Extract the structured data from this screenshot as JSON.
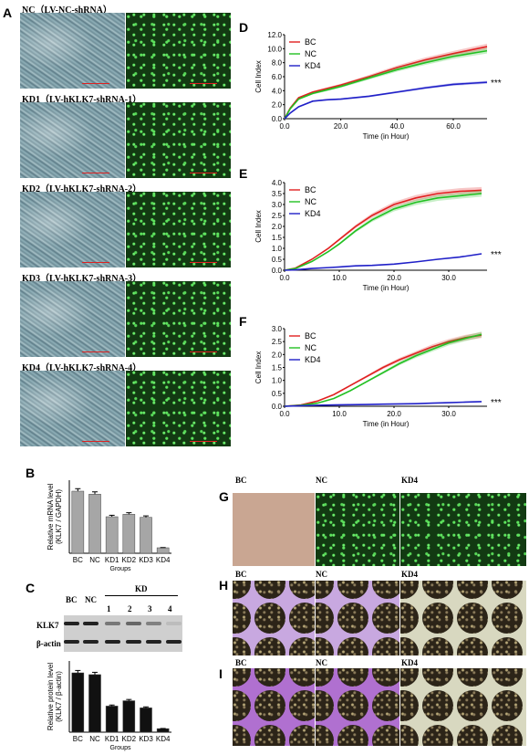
{
  "panel_labels": {
    "A": "A",
    "B": "B",
    "C": "C",
    "D": "D",
    "E": "E",
    "F": "F",
    "G": "G",
    "H": "H",
    "I": "I"
  },
  "microscopy": [
    {
      "title": "NC（LV-NC-shRNA）"
    },
    {
      "title": "KD1（LV-hKLK7-shRNA-1）"
    },
    {
      "title": "KD2（LV-hKLK7-shRNA-2）"
    },
    {
      "title": "KD3（LV-hKLK7-shRNA-3）"
    },
    {
      "title": "KD4（LV-hKLK7-shRNA-4）"
    }
  ],
  "western": {
    "col_labels": [
      "BC",
      "NC",
      "1",
      "2",
      "3",
      "4"
    ],
    "kd_label": "KD",
    "row_labels": [
      "KLK7",
      "β-actin"
    ]
  },
  "assays": {
    "G": {
      "labels": [
        "BC",
        "NC",
        "KD4"
      ]
    },
    "H": {
      "labels": [
        "BC",
        "NC",
        "KD4"
      ]
    },
    "I": {
      "labels": [
        "BC",
        "NC",
        "KD4"
      ]
    }
  },
  "colors": {
    "BC": "#e02020",
    "NC": "#22c022",
    "KD4": "#2020c8",
    "bar_B": "#a6a6a6",
    "bar_C": "#111111"
  },
  "chart_data": [
    {
      "id": "B",
      "type": "bar",
      "categories": [
        "BC",
        "NC",
        "KD1",
        "KD2",
        "KD3",
        "KD4"
      ],
      "values": [
        1.02,
        0.97,
        0.6,
        0.64,
        0.59,
        0.09
      ],
      "xlabel": "Groups",
      "ylabel": "Relative mRNA level\n(KLK7 / GAPDH)",
      "ylim": [
        0,
        1.2
      ],
      "ticks": []
    },
    {
      "id": "C",
      "type": "bar",
      "categories": [
        "BC",
        "NC",
        "KD1",
        "KD2",
        "KD3",
        "KD4"
      ],
      "values": [
        1.0,
        0.97,
        0.44,
        0.53,
        0.41,
        0.06
      ],
      "xlabel": "Groups",
      "ylabel": "Relative protein level\n(KLK7 / β-actin)",
      "ylim": [
        0,
        1.2
      ],
      "ticks": []
    },
    {
      "id": "D",
      "type": "line",
      "xlabel": "Time (in Hour)",
      "ylabel": "Cell Index",
      "xlim": [
        0,
        72
      ],
      "ylim": [
        0,
        12
      ],
      "xticks": [
        "0.0",
        "20.0",
        "40.0",
        "60.0"
      ],
      "xtick_vals": [
        0,
        20,
        40,
        60
      ],
      "yticks": [
        "0.0",
        "2.0",
        "4.0",
        "6.0",
        "8.0",
        "10.0",
        "12.0"
      ],
      "ytick_vals": [
        0,
        2,
        4,
        6,
        8,
        10,
        12
      ],
      "annotation": "***",
      "series": [
        {
          "name": "BC",
          "x": [
            0,
            2,
            5,
            10,
            15,
            20,
            30,
            40,
            50,
            60,
            72
          ],
          "y": [
            0,
            1.5,
            3.0,
            3.8,
            4.3,
            4.8,
            6.0,
            7.3,
            8.4,
            9.3,
            10.3
          ]
        },
        {
          "name": "NC",
          "x": [
            0,
            2,
            5,
            10,
            15,
            20,
            30,
            40,
            50,
            60,
            72
          ],
          "y": [
            0,
            1.4,
            2.8,
            3.6,
            4.1,
            4.6,
            5.8,
            7.0,
            8.0,
            8.9,
            9.7
          ]
        },
        {
          "name": "KD4",
          "x": [
            0,
            2,
            5,
            10,
            15,
            20,
            30,
            40,
            50,
            60,
            72
          ],
          "y": [
            0,
            0.8,
            1.7,
            2.5,
            2.7,
            2.8,
            3.2,
            3.8,
            4.4,
            4.9,
            5.2
          ]
        }
      ]
    },
    {
      "id": "E",
      "type": "line",
      "xlabel": "Time (in Hour)",
      "ylabel": "Cell Index",
      "xlim": [
        0,
        37
      ],
      "ylim": [
        0,
        4
      ],
      "xticks": [
        "0.0",
        "10.0",
        "20.0",
        "30.0"
      ],
      "xtick_vals": [
        0,
        10,
        20,
        30
      ],
      "yticks": [
        "0.0",
        "0.5",
        "1.0",
        "1.5",
        "2.0",
        "2.5",
        "3.0",
        "3.5",
        "4.0"
      ],
      "ytick_vals": [
        0,
        0.5,
        1,
        1.5,
        2,
        2.5,
        3,
        3.5,
        4
      ],
      "annotation": "***",
      "series": [
        {
          "name": "BC",
          "x": [
            0,
            2,
            5,
            8,
            10,
            13,
            16,
            20,
            24,
            28,
            32,
            36
          ],
          "y": [
            0,
            0.1,
            0.5,
            1.0,
            1.4,
            2.0,
            2.5,
            3.0,
            3.3,
            3.5,
            3.6,
            3.65
          ]
        },
        {
          "name": "NC",
          "x": [
            0,
            2,
            5,
            8,
            10,
            13,
            16,
            20,
            24,
            28,
            32,
            36
          ],
          "y": [
            0,
            0.08,
            0.4,
            0.85,
            1.2,
            1.8,
            2.3,
            2.8,
            3.1,
            3.3,
            3.4,
            3.5
          ]
        },
        {
          "name": "KD4",
          "x": [
            0,
            2,
            5,
            8,
            10,
            13,
            16,
            20,
            24,
            28,
            32,
            36
          ],
          "y": [
            0,
            0.02,
            0.08,
            0.12,
            0.15,
            0.2,
            0.22,
            0.28,
            0.38,
            0.5,
            0.6,
            0.75
          ]
        }
      ]
    },
    {
      "id": "F",
      "type": "line",
      "xlabel": "Time (in Hour)",
      "ylabel": "Cell Index",
      "xlim": [
        0,
        37
      ],
      "ylim": [
        0,
        3
      ],
      "xticks": [
        "0.0",
        "10.0",
        "20.0",
        "30.0"
      ],
      "xtick_vals": [
        0,
        10,
        20,
        30
      ],
      "yticks": [
        "0.0",
        "0.5",
        "1.0",
        "1.5",
        "2.0",
        "2.5",
        "3.0"
      ],
      "ytick_vals": [
        0,
        0.5,
        1,
        1.5,
        2,
        2.5,
        3
      ],
      "annotation": "***",
      "series": [
        {
          "name": "BC",
          "x": [
            0,
            3,
            6,
            9,
            12,
            15,
            18,
            21,
            24,
            27,
            30,
            33,
            36
          ],
          "y": [
            0,
            0.05,
            0.2,
            0.45,
            0.8,
            1.15,
            1.5,
            1.8,
            2.05,
            2.3,
            2.5,
            2.65,
            2.75
          ]
        },
        {
          "name": "NC",
          "x": [
            0,
            3,
            6,
            9,
            12,
            15,
            18,
            21,
            24,
            27,
            30,
            33,
            36
          ],
          "y": [
            0,
            0.04,
            0.12,
            0.3,
            0.6,
            0.95,
            1.3,
            1.65,
            1.95,
            2.2,
            2.45,
            2.62,
            2.78
          ]
        },
        {
          "name": "KD4",
          "x": [
            0,
            3,
            6,
            9,
            12,
            15,
            18,
            21,
            24,
            27,
            30,
            33,
            36
          ],
          "y": [
            0,
            0.02,
            0.04,
            0.05,
            0.06,
            0.07,
            0.08,
            0.09,
            0.1,
            0.12,
            0.14,
            0.16,
            0.18
          ]
        }
      ]
    }
  ]
}
